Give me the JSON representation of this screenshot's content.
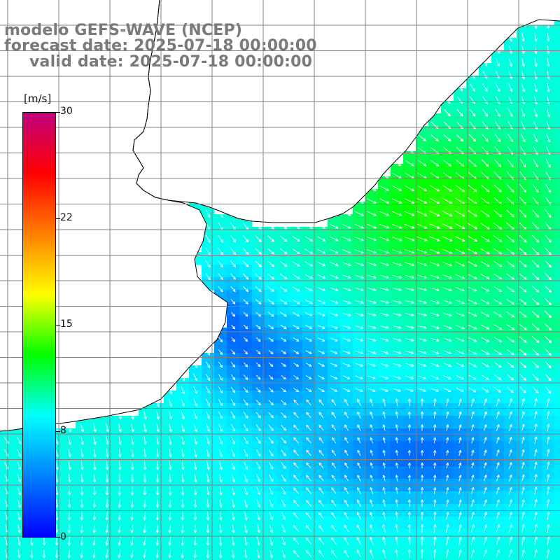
{
  "header": {
    "line1": "modelo GEFS-WAVE (NCEP)",
    "line2": "forecast date: 2025-07-18 00:00:00",
    "line3": "valid date: 2025-07-18 00:00:00"
  },
  "colorbar": {
    "unit": "[m/s]",
    "ticks": [
      "30",
      "22",
      "15",
      "8",
      "0"
    ],
    "colors": [
      "#0000ff",
      "#0080ff",
      "#00ffff",
      "#00ff00",
      "#ffff00",
      "#ff8000",
      "#ff0000",
      "#c0007f"
    ]
  },
  "map": {
    "grid_color": "#808080",
    "land_color": "#ffffff",
    "coast_color": "#000000",
    "arrow_color": "#ffffff"
  }
}
